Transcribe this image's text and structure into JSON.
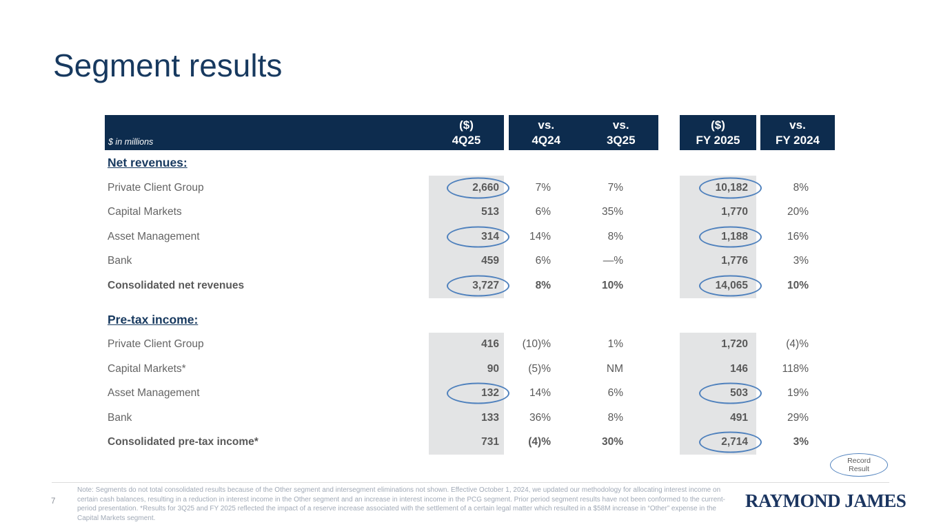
{
  "slide": {
    "title": "Segment results",
    "page_number": "7",
    "logo_text": "RAYMOND JAMES",
    "footnote": "Note: Segments do not total consolidated results because of the Other segment and intersegment eliminations not shown.  Effective October 1, 2024, we updated our methodology for allocating interest income on certain cash balances, resulting in a reduction in interest income in the Other segment and an increase in interest income in the PCG segment.  Prior period segment results have not been conformed to the current-period presentation. *Results for 3Q25 and FY 2025 reflected the impact of a reserve increase associated with the settlement of a certain legal matter which resulted in a $58M increase in “Other” expense in the Capital Markets segment.",
    "legend_badge": {
      "line1": "Record",
      "line2": "Result"
    },
    "colors": {
      "header_navy": "#0d2c4e",
      "title_navy": "#17395f",
      "accent_ellipse_blue": "#4f81bd",
      "shade_gray": "#e3e4e5",
      "text_gray": "#595959",
      "footnote_gray": "#a0a9b6"
    }
  },
  "table": {
    "unit_label": "$ in millions",
    "headers": {
      "q_sign": "($)",
      "q_label": "4Q25",
      "vs1_top": "vs.",
      "vs1_bottom": "4Q24",
      "vs2_top": "vs.",
      "vs2_bottom": "3Q25",
      "fy_sign": "($)",
      "fy_label": "FY 2025",
      "vs3_top": "vs.",
      "vs3_bottom": "FY 2024"
    },
    "sections": [
      {
        "heading": "Net revenues:",
        "rows": [
          {
            "label": "Private Client Group",
            "q": "2,660",
            "vs_4q24": "7%",
            "vs_3q25": "7%",
            "fy": "10,182",
            "vs_fy2024": "8%",
            "q_circled": true,
            "fy_circled": true,
            "total": false
          },
          {
            "label": "Capital Markets",
            "q": "513",
            "vs_4q24": "6%",
            "vs_3q25": "35%",
            "fy": "1,770",
            "vs_fy2024": "20%",
            "q_circled": false,
            "fy_circled": false,
            "total": false
          },
          {
            "label": "Asset Management",
            "q": "314",
            "vs_4q24": "14%",
            "vs_3q25": "8%",
            "fy": "1,188",
            "vs_fy2024": "16%",
            "q_circled": true,
            "fy_circled": true,
            "total": false
          },
          {
            "label": "Bank",
            "q": "459",
            "vs_4q24": "6%",
            "vs_3q25": "—%",
            "fy": "1,776",
            "vs_fy2024": "3%",
            "q_circled": false,
            "fy_circled": false,
            "total": false
          },
          {
            "label": "Consolidated net revenues",
            "q": "3,727",
            "vs_4q24": "8%",
            "vs_3q25": "10%",
            "fy": "14,065",
            "vs_fy2024": "10%",
            "q_circled": true,
            "fy_circled": true,
            "total": true
          }
        ]
      },
      {
        "heading": "Pre-tax income:",
        "rows": [
          {
            "label": "Private Client Group",
            "q": "416",
            "vs_4q24": "(10)%",
            "vs_3q25": "1%",
            "fy": "1,720",
            "vs_fy2024": "(4)%",
            "q_circled": false,
            "fy_circled": false,
            "total": false
          },
          {
            "label": "Capital Markets*",
            "q": "90",
            "vs_4q24": "(5)%",
            "vs_3q25": "NM",
            "fy": "146",
            "vs_fy2024": "118%",
            "q_circled": false,
            "fy_circled": false,
            "total": false
          },
          {
            "label": "Asset Management",
            "q": "132",
            "vs_4q24": "14%",
            "vs_3q25": "6%",
            "fy": "503",
            "vs_fy2024": "19%",
            "q_circled": true,
            "fy_circled": true,
            "total": false
          },
          {
            "label": "Bank",
            "q": "133",
            "vs_4q24": "36%",
            "vs_3q25": "8%",
            "fy": "491",
            "vs_fy2024": "29%",
            "q_circled": false,
            "fy_circled": false,
            "total": false
          },
          {
            "label": "Consolidated pre-tax income*",
            "q": "731",
            "vs_4q24": "(4)%",
            "vs_3q25": "30%",
            "fy": "2,714",
            "vs_fy2024": "3%",
            "q_circled": false,
            "fy_circled": true,
            "total": true
          }
        ]
      }
    ]
  }
}
